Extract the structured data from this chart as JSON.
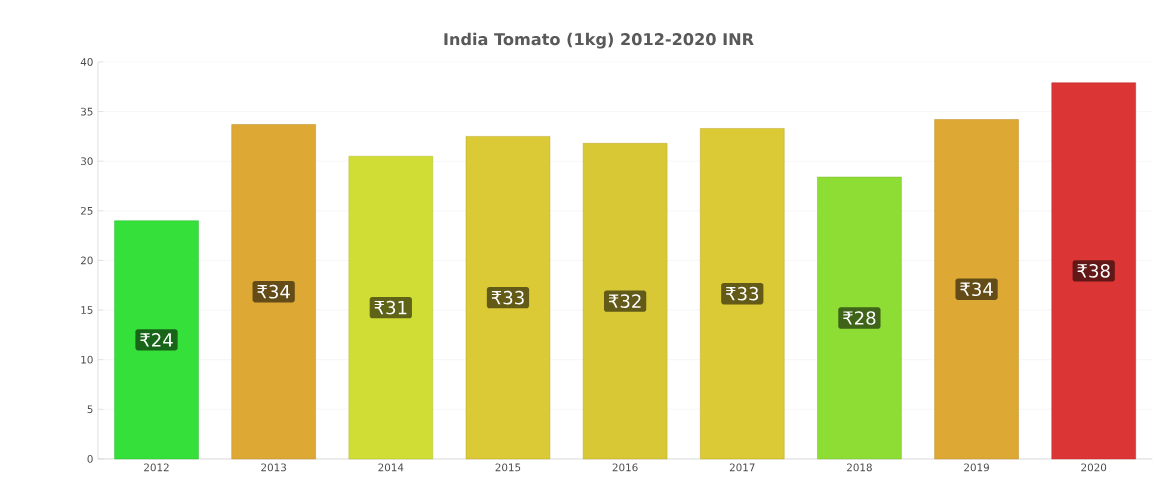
{
  "chart_data": {
    "type": "bar",
    "title": "India Tomato (1kg) 2012-2020 INR",
    "categories": [
      "2012",
      "2013",
      "2014",
      "2015",
      "2016",
      "2017",
      "2018",
      "2019",
      "2020"
    ],
    "values": [
      24.0,
      33.7,
      30.5,
      32.5,
      31.8,
      33.3,
      28.4,
      34.2,
      37.9
    ],
    "value_labels": [
      "₹24",
      "₹34",
      "₹31",
      "₹33",
      "₹32",
      "₹33",
      "₹28",
      "₹34",
      "₹38"
    ],
    "colors": [
      "#35e03a",
      "#dea835",
      "#d0dd35",
      "#dbc935",
      "#d9c835",
      "#dbc935",
      "#8ddd35",
      "#dea835",
      "#dc3535"
    ],
    "ylim": [
      0,
      40
    ],
    "yticks": [
      0,
      5,
      10,
      15,
      20,
      25,
      30,
      35,
      40
    ],
    "grid": "y"
  }
}
